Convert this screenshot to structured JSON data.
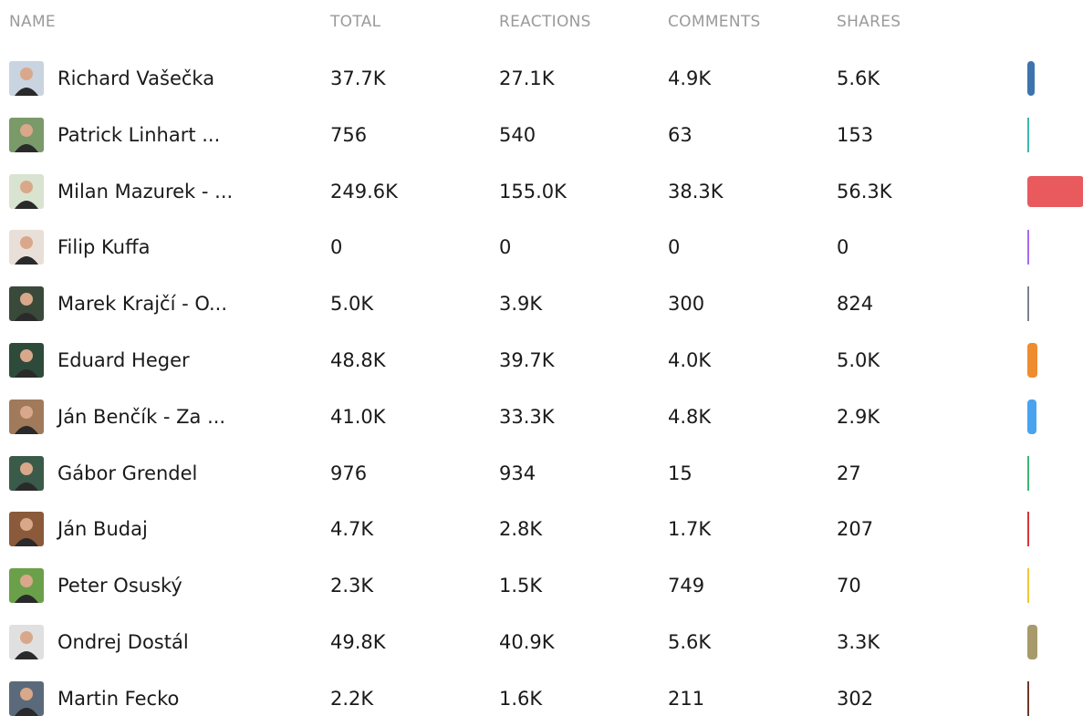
{
  "table": {
    "columns": [
      "NAME",
      "TOTAL",
      "REACTIONS",
      "COMMENTS",
      "SHARES"
    ],
    "rows": [
      [
        "Richard Vašečka",
        "37.7K",
        "27.1K",
        "4.9K",
        "5.6K"
      ],
      [
        "Patrick Linhart ...",
        "756",
        "540",
        "63",
        "153"
      ],
      [
        "Milan Mazurek - ...",
        "249.6K",
        "155.0K",
        "38.3K",
        "56.3K"
      ],
      [
        "Filip Kuffa",
        "0",
        "0",
        "0",
        "0"
      ],
      [
        "Marek Krajčí - O...",
        "5.0K",
        "3.9K",
        "300",
        "824"
      ],
      [
        "Eduard Heger",
        "48.8K",
        "39.7K",
        "4.0K",
        "5.0K"
      ],
      [
        "Ján Benčík - Za ...",
        "41.0K",
        "33.3K",
        "4.8K",
        "2.9K"
      ],
      [
        "Gábor Grendel",
        "976",
        "934",
        "15",
        "27"
      ],
      [
        "Ján Budaj",
        "4.7K",
        "2.8K",
        "1.7K",
        "207"
      ],
      [
        "Peter Osuský",
        "2.3K",
        "1.5K",
        "749",
        "70"
      ],
      [
        "Ondrej Dostál",
        "49.8K",
        "40.9K",
        "5.6K",
        "3.3K"
      ],
      [
        "Martin Fecko",
        "2.2K",
        "1.6K",
        "211",
        "302"
      ]
    ]
  }
}
